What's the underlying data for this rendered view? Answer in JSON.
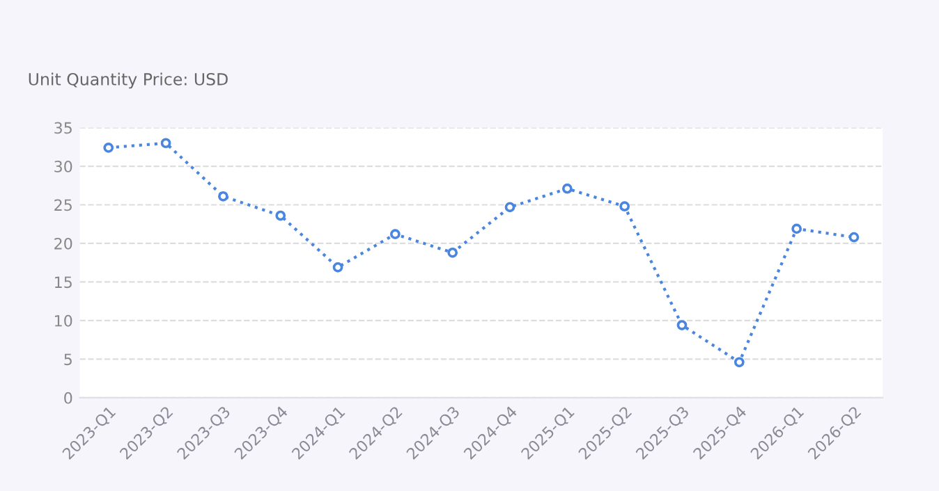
{
  "chart_data": {
    "type": "line",
    "title": "Unit Quantity Price: USD",
    "categories": [
      "2023-Q1",
      "2023-Q2",
      "2023-Q3",
      "2023-Q4",
      "2024-Q1",
      "2024-Q2",
      "2024-Q3",
      "2024-Q4",
      "2025-Q1",
      "2025-Q2",
      "2025-Q3",
      "2025-Q4",
      "2026-Q1",
      "2026-Q2"
    ],
    "series": [
      {
        "color": "#4a86e0",
        "values": [
          32.4,
          33.0,
          26.1,
          23.6,
          16.9,
          21.2,
          18.8,
          24.7,
          27.1,
          24.8,
          9.4,
          4.6,
          21.9,
          20.8
        ]
      }
    ],
    "ylim": [
      0,
      35
    ],
    "yticks": [
      0,
      5,
      10,
      15,
      20,
      25,
      30,
      35
    ],
    "grid": "y",
    "marker": "circle",
    "line_style": "dotted",
    "legend": false
  }
}
